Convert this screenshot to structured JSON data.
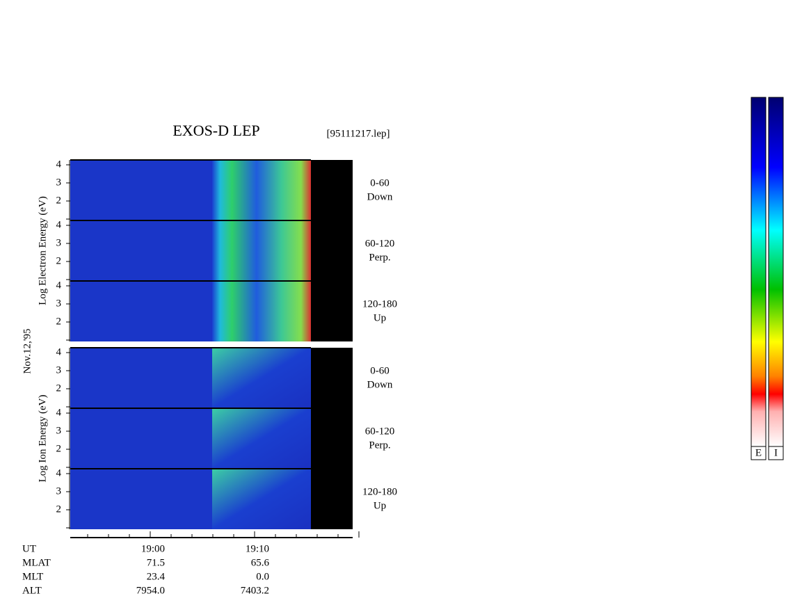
{
  "header": {
    "title": "EXOS-D LEP",
    "file": "[95111217.lep]"
  },
  "date": "Nov.12,'95",
  "groups": [
    {
      "axis_label": "Log  Electron  Energy (eV)",
      "panels": [
        {
          "angle": "0-60",
          "direction": "Down"
        },
        {
          "angle": "60-120",
          "direction": "Perp."
        },
        {
          "angle": "120-180",
          "direction": "Up"
        }
      ]
    },
    {
      "axis_label": "Log  Ion  Energy (eV)",
      "panels": [
        {
          "angle": "0-60",
          "direction": "Down"
        },
        {
          "angle": "60-120",
          "direction": "Perp."
        },
        {
          "angle": "120-180",
          "direction": "Up"
        }
      ]
    }
  ],
  "yticks": [
    "4",
    "3",
    "2"
  ],
  "ephemeris": [
    [
      "UT",
      "19:00",
      "19:10"
    ],
    [
      "MLAT",
      "71.5",
      "65.6"
    ],
    [
      "MLT",
      "23.4",
      "0.0"
    ],
    [
      "ALT",
      "7954.0",
      "7403.2"
    ]
  ],
  "colorbar_labels": [
    "E",
    "I"
  ]
}
